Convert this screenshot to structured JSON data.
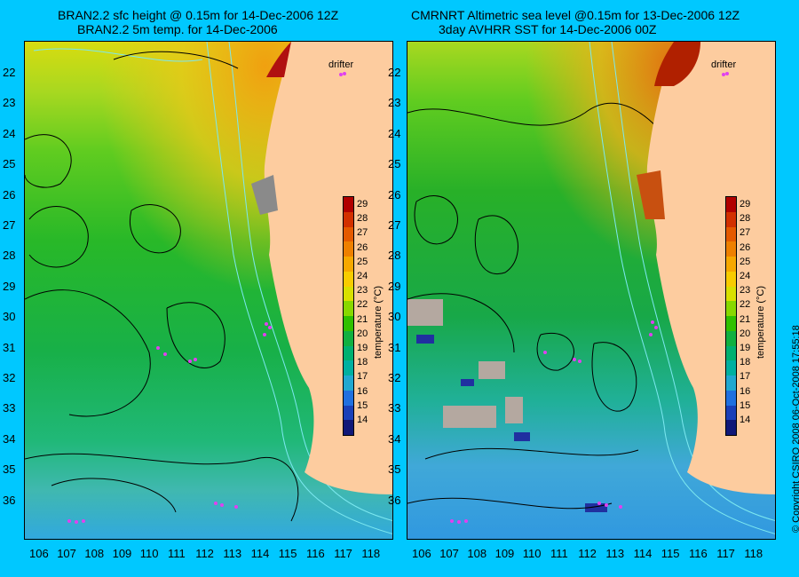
{
  "left_panel": {
    "title_line1": "BRAN2.2 sfc height @ 0.15m for 14-Dec-2006 12Z",
    "title_line2": "BRAN2.2 5m temp. for 14-Dec-2006",
    "drifter_label": "drifter"
  },
  "right_panel": {
    "title_line1": "CMRNRT Altimetric sea level  @0.15m  for 13-Dec-2006 12Z",
    "title_line2": "3day AVHRR SST for 14-Dec-2006 00Z",
    "drifter_label": "drifter"
  },
  "latitude_ticks": [
    "22",
    "23",
    "24",
    "25",
    "26",
    "27",
    "28",
    "29",
    "30",
    "31",
    "32",
    "33",
    "34",
    "35",
    "36"
  ],
  "longitude_ticks": [
    "106",
    "107",
    "108",
    "109",
    "110",
    "111",
    "112",
    "113",
    "114",
    "115",
    "116",
    "117",
    "118"
  ],
  "colorbar": {
    "title": "temperature (°C)",
    "labels": [
      "29",
      "28",
      "27",
      "26",
      "25",
      "24",
      "23",
      "22",
      "21",
      "20",
      "19",
      "18",
      "17",
      "16",
      "15",
      "14"
    ],
    "colors": [
      "#b00000",
      "#d23000",
      "#e45a00",
      "#ee8000",
      "#f6a800",
      "#f8cc00",
      "#d8e000",
      "#88d800",
      "#30c000",
      "#10b040",
      "#00b070",
      "#00b0a0",
      "#20a8d0",
      "#2070e0",
      "#1a40b8",
      "#101878"
    ]
  },
  "copyright": "© Copyright CSIRO 2008   06-Oct-2008 17:55:18",
  "colors": {
    "background": "#00c8ff",
    "land": "#fdcc9f",
    "contour": "#000000",
    "isobath": "#7ce8f0",
    "drifter": "#e040f0"
  }
}
